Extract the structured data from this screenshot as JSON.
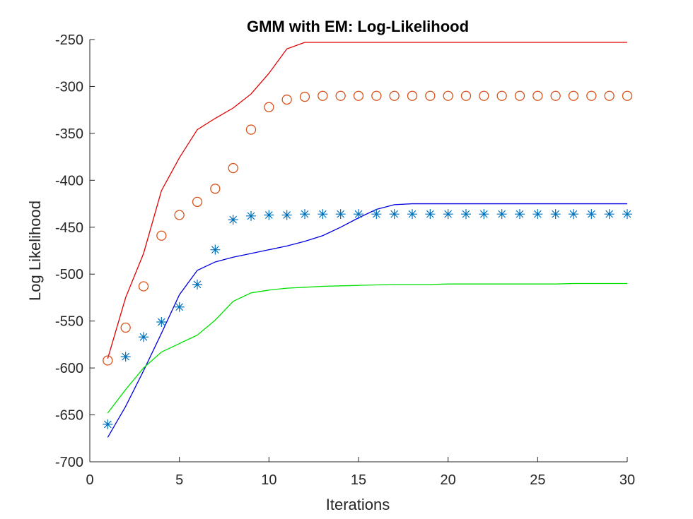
{
  "chart_data": {
    "type": "line",
    "title": "GMM with EM: Log-Likelihood",
    "xlabel": "Iterations",
    "ylabel": "Log Likelihood",
    "xlim": [
      0,
      30
    ],
    "ylim": [
      -700,
      -250
    ],
    "xticks": [
      0,
      5,
      10,
      15,
      20,
      25,
      30
    ],
    "yticks": [
      -700,
      -650,
      -600,
      -550,
      -500,
      -450,
      -400,
      -350,
      -300,
      -250
    ],
    "grid": false,
    "series": [
      {
        "name": "red-line",
        "style": "line",
        "color": "#e00000",
        "x": [
          1,
          2,
          3,
          4,
          5,
          6,
          7,
          8,
          9,
          10,
          11,
          12,
          13,
          14,
          15,
          16,
          17,
          18,
          19,
          20,
          21,
          22,
          23,
          24,
          25,
          26,
          27,
          28,
          29,
          30
        ],
        "values": [
          -590,
          -525,
          -478,
          -411,
          -376,
          -346,
          -334,
          -323,
          -308,
          -286,
          -260,
          -253,
          -253,
          -253,
          -253,
          -253,
          -253,
          -253,
          -253,
          -253,
          -253,
          -253,
          -253,
          -253,
          -253,
          -253,
          -253,
          -253,
          -253,
          -253
        ]
      },
      {
        "name": "orange-circles",
        "style": "marker-circle",
        "color": "#d95319",
        "x": [
          1,
          2,
          3,
          4,
          5,
          6,
          7,
          8,
          9,
          10,
          11,
          12,
          13,
          14,
          15,
          16,
          17,
          18,
          19,
          20,
          21,
          22,
          23,
          24,
          25,
          26,
          27,
          28,
          29,
          30
        ],
        "values": [
          -592,
          -557,
          -513,
          -459,
          -437,
          -423,
          -409,
          -387,
          -346,
          -322,
          -314,
          -311,
          -310,
          -310,
          -310,
          -310,
          -310,
          -310,
          -310,
          -310,
          -310,
          -310,
          -310,
          -310,
          -310,
          -310,
          -310,
          -310,
          -310,
          -310
        ]
      },
      {
        "name": "blue-line",
        "style": "line",
        "color": "#0000e0",
        "x": [
          1,
          2,
          3,
          4,
          5,
          6,
          7,
          8,
          9,
          10,
          11,
          12,
          13,
          14,
          15,
          16,
          17,
          18,
          19,
          20,
          21,
          22,
          23,
          24,
          25,
          26,
          27,
          28,
          29,
          30
        ],
        "values": [
          -674,
          -641,
          -603,
          -563,
          -522,
          -496,
          -487,
          -482,
          -478,
          -474,
          -470,
          -465,
          -459,
          -450,
          -440,
          -431,
          -426,
          -425,
          -425,
          -425,
          -425,
          -425,
          -425,
          -425,
          -425,
          -425,
          -425,
          -425,
          -425,
          -425
        ]
      },
      {
        "name": "blue-stars",
        "style": "marker-star",
        "color": "#0072bd",
        "x": [
          1,
          2,
          3,
          4,
          5,
          6,
          7,
          8,
          9,
          10,
          11,
          12,
          13,
          14,
          15,
          16,
          17,
          18,
          19,
          20,
          21,
          22,
          23,
          24,
          25,
          26,
          27,
          28,
          29,
          30
        ],
        "values": [
          -660,
          -588,
          -567,
          -551,
          -535,
          -511,
          -474,
          -442,
          -438,
          -437,
          -437,
          -436,
          -436,
          -436,
          -436,
          -436,
          -436,
          -436,
          -436,
          -436,
          -436,
          -436,
          -436,
          -436,
          -436,
          -436,
          -436,
          -436,
          -436,
          -436
        ]
      },
      {
        "name": "green-line",
        "style": "line",
        "color": "#00e000",
        "x": [
          1,
          2,
          3,
          4,
          5,
          6,
          7,
          8,
          9,
          10,
          11,
          12,
          13,
          14,
          15,
          16,
          17,
          18,
          19,
          20,
          21,
          22,
          23,
          24,
          25,
          26,
          27,
          28,
          29,
          30
        ],
        "values": [
          -648,
          -623,
          -600,
          -583,
          -574,
          -565,
          -549,
          -529,
          -520,
          -517,
          -515,
          -514,
          -513,
          -512.5,
          -512,
          -511.5,
          -511,
          -511,
          -511,
          -510.5,
          -510.5,
          -510.5,
          -510.5,
          -510.5,
          -510.5,
          -510.5,
          -510,
          -510,
          -510,
          -510
        ]
      }
    ]
  }
}
